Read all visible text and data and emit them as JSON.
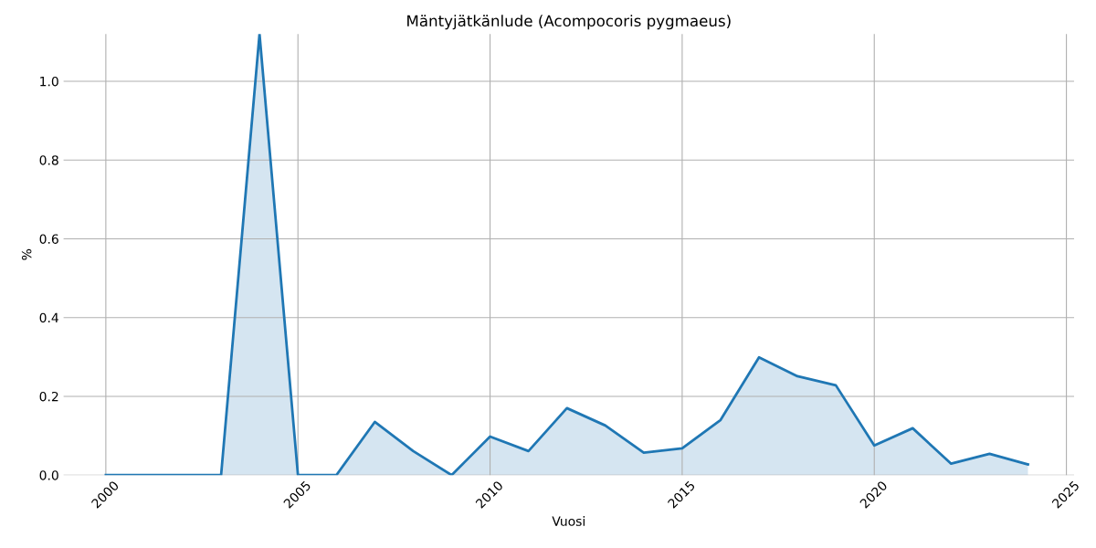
{
  "chart_data": {
    "type": "area",
    "title": "Mäntyjätkänlude (Acompocoris pygmaeus)",
    "xlabel": "Vuosi",
    "ylabel": "%",
    "x": [
      2000,
      2001,
      2002,
      2003,
      2004,
      2005,
      2006,
      2007,
      2008,
      2009,
      2010,
      2011,
      2012,
      2013,
      2014,
      2015,
      2016,
      2017,
      2018,
      2019,
      2020,
      2021,
      2022,
      2023,
      2024
    ],
    "series": [
      {
        "color": "#1f77b4",
        "values": [
          0,
          0,
          0,
          0,
          1.12,
          0,
          0,
          0.135,
          0.061,
          0,
          0.098,
          0.061,
          0.17,
          0.126,
          0.057,
          0.068,
          0.14,
          0.299,
          0.251,
          0.228,
          0.075,
          0.119,
          0.029,
          0.054,
          0.027
        ]
      }
    ],
    "xlim": [
      1998.9,
      2025.2
    ],
    "ylim": [
      0,
      1.12
    ],
    "xticks": [
      2000,
      2005,
      2010,
      2015,
      2020,
      2025
    ],
    "yticks": [
      {
        "value": 0,
        "label": "0.0"
      },
      {
        "value": 0.2,
        "label": "0.2"
      },
      {
        "value": 0.4,
        "label": "0.4"
      },
      {
        "value": 0.6,
        "label": "0.6"
      },
      {
        "value": 0.8,
        "label": "0.8"
      },
      {
        "value": 1.0,
        "label": "1.0"
      }
    ],
    "grid": true,
    "legend": false
  }
}
